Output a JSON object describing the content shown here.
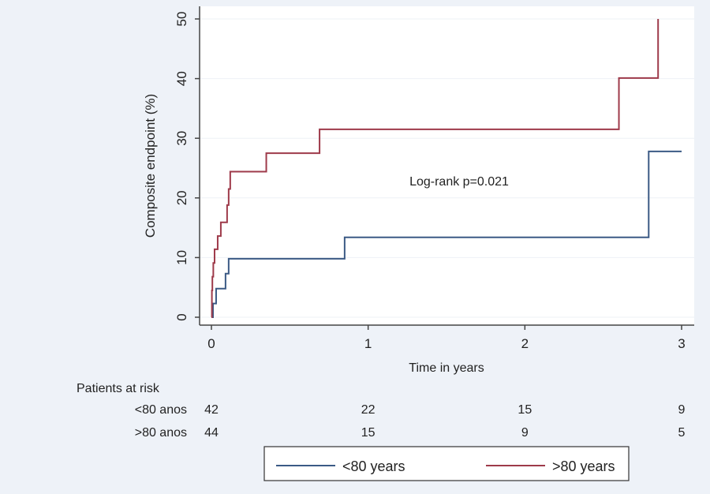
{
  "chart_data": {
    "type": "line",
    "subtype": "kaplan-meier-step",
    "title": "",
    "xlabel": "Time in years",
    "ylabel": "Composite endpoint (%)",
    "xlim": [
      0,
      3
    ],
    "ylim": [
      0,
      50
    ],
    "xticks": [
      0,
      1,
      2,
      3
    ],
    "yticks": [
      0,
      10,
      20,
      30,
      40,
      50
    ],
    "grid": true,
    "annotation": "Log-rank p=0.021",
    "series": [
      {
        "name": "<80 years",
        "color": "#3b5a85",
        "x": [
          0,
          0.01,
          0.03,
          0.09,
          0.11,
          0.85,
          2.79,
          3.0
        ],
        "y": [
          0,
          2.3,
          4.8,
          7.3,
          9.8,
          13.4,
          27.8,
          27.8
        ]
      },
      {
        "name": ">80 years",
        "color": "#9e3a4a",
        "x": [
          0,
          0.003,
          0.006,
          0.012,
          0.02,
          0.04,
          0.06,
          0.1,
          0.11,
          0.12,
          0.35,
          0.69,
          2.6,
          2.85
        ],
        "y": [
          0,
          4.5,
          6.8,
          9.1,
          11.4,
          13.6,
          15.9,
          18.8,
          21.5,
          24.4,
          27.5,
          31.5,
          40.1,
          50
        ]
      }
    ],
    "legend": {
      "placement": "bottom-center",
      "entries": [
        "<80 years",
        ">80 years"
      ]
    },
    "risk_table": {
      "title": "Patients at risk",
      "times": [
        0,
        1,
        2,
        3
      ],
      "rows": [
        {
          "label": "<80 anos",
          "values": [
            "42",
            "22",
            "15",
            "9"
          ]
        },
        {
          "label": ">80 anos",
          "values": [
            "44",
            "15",
            "9",
            "5"
          ]
        }
      ]
    }
  }
}
